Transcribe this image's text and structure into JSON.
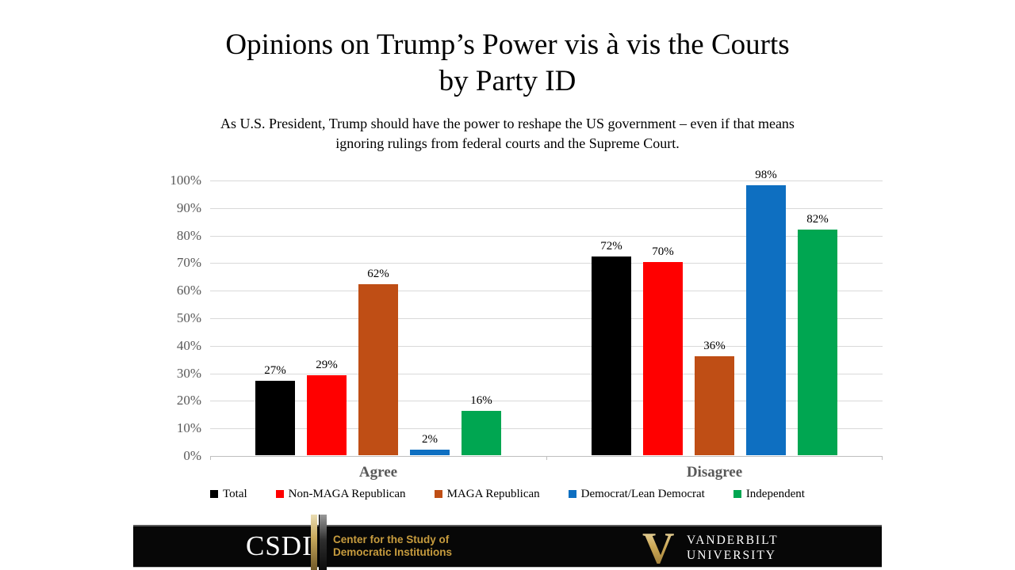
{
  "slide": {
    "title_line1": "Opinions on Trump’s Power vis à vis the Courts",
    "title_line2": "by Party ID",
    "subtitle_line1": "As U.S. President, Trump should have the power to reshape the US government – even if that means",
    "subtitle_line2": "ignoring rulings from federal courts and the Supreme Court."
  },
  "chart_data": {
    "type": "bar",
    "categories": [
      "Agree",
      "Disagree"
    ],
    "series": [
      {
        "name": "Total",
        "color": "#000000",
        "values": [
          27,
          72
        ]
      },
      {
        "name": "Non-MAGA Republican",
        "color": "#ff0000",
        "values": [
          29,
          70
        ]
      },
      {
        "name": "MAGA Republican",
        "color": "#bf4e15",
        "values": [
          62,
          36
        ]
      },
      {
        "name": "Democrat/Lean Democrat",
        "color": "#0e6fc1",
        "values": [
          2,
          98
        ]
      },
      {
        "name": "Independent",
        "color": "#00a651",
        "values": [
          16,
          82
        ]
      }
    ],
    "value_suffix": "%",
    "ylim": [
      0,
      100
    ],
    "ytick_step": 10,
    "ytick_labels": [
      "0%",
      "10%",
      "20%",
      "30%",
      "40%",
      "50%",
      "60%",
      "70%",
      "80%",
      "90%",
      "100%"
    ],
    "grid": true,
    "legend_position": "bottom",
    "axis_color": "#595959",
    "gridline_color": "#d9d9d9"
  },
  "footer": {
    "csdi_acronym": "CSDI",
    "csdi_name_line1": "Center for the Study of",
    "csdi_name_line2": "Democratic Institutions",
    "vanderbilt_v": "V",
    "vanderbilt_line1": "VANDERBILT",
    "vanderbilt_line2": "UNIVERSITY",
    "gold_color": "#c79c3e",
    "bar_color": "#070707"
  }
}
